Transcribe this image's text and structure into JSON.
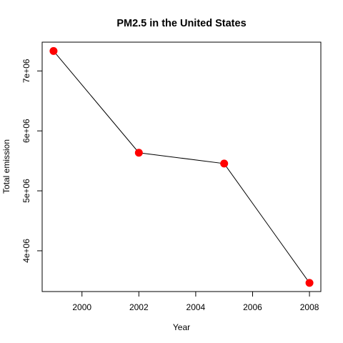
{
  "chart_data": {
    "type": "line",
    "title": "PM2.5 in the United States",
    "xlabel": "Year",
    "ylabel": "Total emission",
    "x": [
      1999,
      2002,
      2005,
      2008
    ],
    "series": [
      {
        "values": [
          7332967,
          5635780,
          5454703,
          3464206
        ]
      }
    ],
    "xlim": [
      1998.6,
      2008.4
    ],
    "ylim": [
      3320000,
      7480000
    ],
    "x_ticks": [
      2000,
      2002,
      2004,
      2006,
      2008
    ],
    "x_tick_labels": [
      "2000",
      "2002",
      "2004",
      "2006",
      "2008"
    ],
    "y_ticks": [
      4000000,
      5000000,
      6000000,
      7000000
    ],
    "y_tick_labels": [
      "4e+06",
      "5e+06",
      "6e+06",
      "7e+06"
    ],
    "grid": false,
    "line_color": "#000000",
    "marker_color": "#ff0000"
  }
}
